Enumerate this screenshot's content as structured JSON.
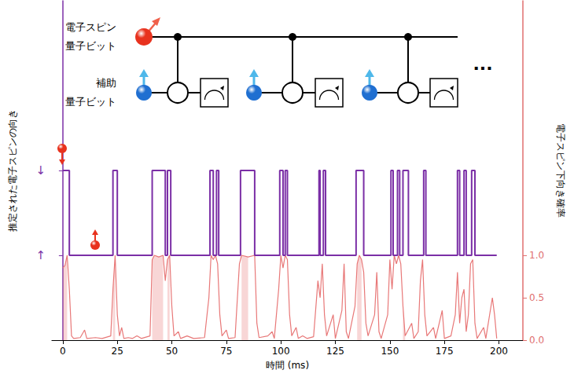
{
  "chart_data": {
    "type": "line",
    "x_label": "時間 (ms)",
    "y_label": "推定された電子スピンの向き",
    "y2_label": "電子スピン下向き確率",
    "xlim": [
      -5,
      211
    ],
    "xticks": [
      0,
      25,
      50,
      75,
      100,
      125,
      150,
      175,
      200
    ],
    "ylim": [
      0,
      4
    ],
    "yticks": [
      {
        "value": 1,
        "label": "↑"
      },
      {
        "value": 2,
        "label": "↓"
      }
    ],
    "y2lim": [
      0,
      4
    ],
    "y2ticks": [
      {
        "value": 0,
        "label": "0.0"
      },
      {
        "value": 0.5,
        "label": "0.5"
      },
      {
        "value": 1,
        "label": "1.0"
      }
    ],
    "grid": false,
    "series": [
      {
        "type": "line",
        "line_style": "step",
        "color": "#7b2fa6",
        "x": [
          0,
          3,
          23,
          25,
          41,
          47,
          48,
          49.5,
          67.5,
          69,
          70.5,
          71.5,
          81.5,
          88,
          99.5,
          101,
          102,
          103,
          117.5,
          118,
          119.5,
          120.5,
          134.5,
          138,
          150.5,
          151.5,
          153.5,
          154.5,
          156,
          158.5,
          165.5,
          166.5,
          181,
          182,
          184,
          185,
          187.5,
          189,
          199
        ],
        "values": [
          2,
          1,
          2,
          1,
          2,
          1,
          2,
          1,
          2,
          1,
          2,
          1,
          2,
          1,
          2,
          1,
          2,
          1,
          2,
          1,
          2,
          1,
          2,
          1,
          2,
          1,
          2,
          1,
          2,
          1,
          2,
          1,
          2,
          1,
          2,
          1,
          2,
          1,
          1
        ]
      },
      {
        "type": "line",
        "axis": "y2",
        "color": "#e87878",
        "x": [
          0,
          1,
          2,
          3,
          4,
          5,
          8,
          10,
          11,
          15,
          18,
          22,
          23,
          24,
          25,
          26,
          27,
          28,
          30,
          32,
          34,
          36,
          40,
          41,
          42,
          44,
          46,
          47,
          48,
          49,
          50,
          51,
          53,
          54,
          57,
          60,
          65,
          67,
          68,
          69,
          70,
          71,
          72,
          73,
          75,
          76,
          79,
          81,
          82,
          85,
          88,
          89,
          90,
          94,
          96,
          97,
          99,
          100,
          101,
          102,
          103,
          104,
          105,
          107,
          108,
          110,
          112,
          115,
          117,
          118,
          119,
          120,
          121,
          124,
          125,
          128,
          129,
          130,
          131,
          134,
          135,
          136,
          137,
          138,
          139,
          140,
          143,
          144,
          145,
          146,
          149,
          150,
          151,
          152,
          153,
          154,
          155,
          156,
          157,
          160,
          161,
          163,
          164,
          165,
          166,
          167,
          170,
          171,
          174,
          175,
          178,
          180,
          181,
          182,
          183,
          184,
          185,
          186,
          187,
          188,
          189,
          190,
          193,
          194,
          197,
          198,
          199
        ],
        "values": [
          0.85,
          0.88,
          1.0,
          0.6,
          0.05,
          0.02,
          0.03,
          0.12,
          0.02,
          0.03,
          0.02,
          0.05,
          0.6,
          1.0,
          0.3,
          0.05,
          0.15,
          0.02,
          0.03,
          0.02,
          0.05,
          0.02,
          0.05,
          0.95,
          1.0,
          0.98,
          1.0,
          0.7,
          0.95,
          1.0,
          0.4,
          0.05,
          0.1,
          0.02,
          0.05,
          0.02,
          0.03,
          0.5,
          1.0,
          0.95,
          1.0,
          0.9,
          0.3,
          0.05,
          0.12,
          0.02,
          0.03,
          0.9,
          1.0,
          0.98,
          1.0,
          0.2,
          0.03,
          0.05,
          0.1,
          0.02,
          0.6,
          1.0,
          0.85,
          1.0,
          0.95,
          0.3,
          0.05,
          0.15,
          0.02,
          0.05,
          0.02,
          0.04,
          0.7,
          0.5,
          0.9,
          0.3,
          0.05,
          0.3,
          0.02,
          0.35,
          0.9,
          0.1,
          0.02,
          0.4,
          0.9,
          1.0,
          0.95,
          0.8,
          0.2,
          0.05,
          0.3,
          0.8,
          0.1,
          0.02,
          0.3,
          0.95,
          0.6,
          1.0,
          0.9,
          1.0,
          0.9,
          0.4,
          0.05,
          0.2,
          0.02,
          0.1,
          0.7,
          0.95,
          0.3,
          0.05,
          0.15,
          0.02,
          0.35,
          0.02,
          0.05,
          0.3,
          0.8,
          0.2,
          0.5,
          0.6,
          0.1,
          0.3,
          0.9,
          0.95,
          0.2,
          0.02,
          0.15,
          0.02,
          0.5,
          0.3,
          0.02
        ]
      }
    ]
  },
  "diagram": {
    "electron_qubit_label": [
      "電子スピン",
      "量子ビット"
    ],
    "ancilla_qubit_label": [
      "補助",
      "量子ビット"
    ],
    "ellipsis": "···"
  }
}
